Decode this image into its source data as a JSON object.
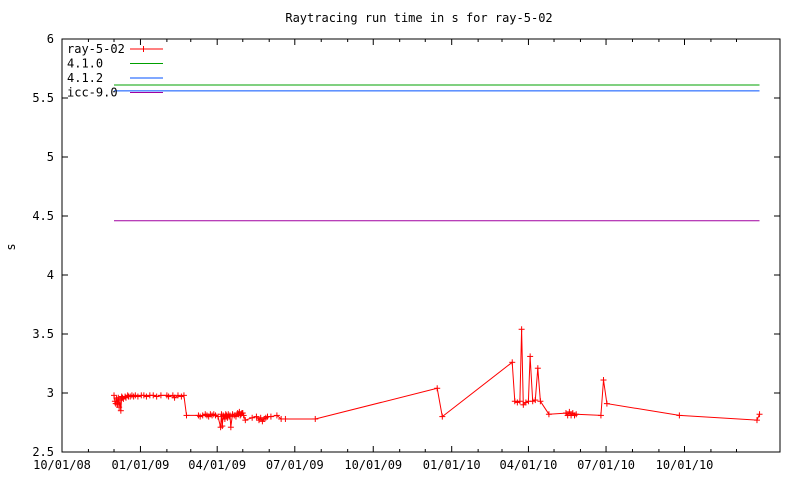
{
  "chart_data": {
    "type": "line",
    "title": "Raytracing run time in s for ray-5-02",
    "xlabel": "",
    "ylabel": "s",
    "xlim": [
      "2008-10-01",
      "2011-01-21"
    ],
    "ylim": [
      2.5,
      6
    ],
    "grid": false,
    "legend_position": "top-left",
    "x_ticks": [
      "10/01/08",
      "01/01/09",
      "04/01/09",
      "07/01/09",
      "10/01/09",
      "01/01/10",
      "04/01/10",
      "07/01/10",
      "10/01/10"
    ],
    "y_ticks": [
      "2.5",
      "3",
      "3.5",
      "4",
      "4.5",
      "5",
      "5.5",
      "6"
    ],
    "series": [
      {
        "name": "ray-5-02",
        "color": "#ff0000",
        "style": "linespoints",
        "marker": "plus",
        "points": [
          [
            "2008-12-01",
            2.98
          ],
          [
            "2008-12-02",
            2.93
          ],
          [
            "2008-12-03",
            2.91
          ],
          [
            "2008-12-04",
            2.95
          ],
          [
            "2008-12-05",
            2.9
          ],
          [
            "2008-12-06",
            2.96
          ],
          [
            "2008-12-07",
            2.88
          ],
          [
            "2008-12-08",
            2.94
          ],
          [
            "2008-12-09",
            2.85
          ],
          [
            "2008-12-10",
            2.97
          ],
          [
            "2008-12-11",
            2.96
          ],
          [
            "2008-12-12",
            2.95
          ],
          [
            "2008-12-14",
            2.97
          ],
          [
            "2008-12-15",
            2.96
          ],
          [
            "2008-12-17",
            2.98
          ],
          [
            "2008-12-18",
            2.97
          ],
          [
            "2008-12-20",
            2.97
          ],
          [
            "2008-12-22",
            2.98
          ],
          [
            "2008-12-24",
            2.97
          ],
          [
            "2008-12-26",
            2.98
          ],
          [
            "2008-12-29",
            2.97
          ],
          [
            "2009-01-02",
            2.98
          ],
          [
            "2009-01-05",
            2.98
          ],
          [
            "2009-01-08",
            2.97
          ],
          [
            "2009-01-12",
            2.98
          ],
          [
            "2009-01-16",
            2.98
          ],
          [
            "2009-01-20",
            2.97
          ],
          [
            "2009-01-25",
            2.98
          ],
          [
            "2009-02-01",
            2.98
          ],
          [
            "2009-02-03",
            2.97
          ],
          [
            "2009-02-08",
            2.98
          ],
          [
            "2009-02-10",
            2.96
          ],
          [
            "2009-02-14",
            2.98
          ],
          [
            "2009-02-18",
            2.97
          ],
          [
            "2009-02-21",
            2.98
          ],
          [
            "2009-02-24",
            2.81
          ],
          [
            "2009-03-10",
            2.81
          ],
          [
            "2009-03-12",
            2.8
          ],
          [
            "2009-03-15",
            2.81
          ],
          [
            "2009-03-18",
            2.82
          ],
          [
            "2009-03-20",
            2.81
          ],
          [
            "2009-03-22",
            2.8
          ],
          [
            "2009-03-24",
            2.82
          ],
          [
            "2009-03-26",
            2.81
          ],
          [
            "2009-03-28",
            2.82
          ],
          [
            "2009-03-30",
            2.81
          ],
          [
            "2009-04-02",
            2.8
          ],
          [
            "2009-04-05",
            2.71
          ],
          [
            "2009-04-06",
            2.82
          ],
          [
            "2009-04-07",
            2.72
          ],
          [
            "2009-04-08",
            2.81
          ],
          [
            "2009-04-09",
            2.8
          ],
          [
            "2009-04-10",
            2.78
          ],
          [
            "2009-04-11",
            2.82
          ],
          [
            "2009-04-12",
            2.81
          ],
          [
            "2009-04-13",
            2.79
          ],
          [
            "2009-04-14",
            2.82
          ],
          [
            "2009-04-15",
            2.8
          ],
          [
            "2009-04-16",
            2.81
          ],
          [
            "2009-04-17",
            2.71
          ],
          [
            "2009-04-19",
            2.82
          ],
          [
            "2009-04-21",
            2.81
          ],
          [
            "2009-04-23",
            2.8
          ],
          [
            "2009-04-25",
            2.83
          ],
          [
            "2009-04-26",
            2.82
          ],
          [
            "2009-04-27",
            2.84
          ],
          [
            "2009-04-28",
            2.81
          ],
          [
            "2009-04-29",
            2.82
          ],
          [
            "2009-04-30",
            2.83
          ],
          [
            "2009-05-01",
            2.83
          ],
          [
            "2009-05-02",
            2.81
          ],
          [
            "2009-05-04",
            2.77
          ],
          [
            "2009-05-12",
            2.79
          ],
          [
            "2009-05-17",
            2.8
          ],
          [
            "2009-05-20",
            2.77
          ],
          [
            "2009-05-22",
            2.79
          ],
          [
            "2009-05-24",
            2.76
          ],
          [
            "2009-05-26",
            2.78
          ],
          [
            "2009-05-28",
            2.79
          ],
          [
            "2009-05-30",
            2.8
          ],
          [
            "2009-06-03",
            2.8
          ],
          [
            "2009-06-10",
            2.81
          ],
          [
            "2009-06-15",
            2.78
          ],
          [
            "2009-06-20",
            2.78
          ],
          [
            "2009-07-25",
            2.78
          ],
          [
            "2009-12-15",
            3.04
          ],
          [
            "2009-12-21",
            2.8
          ],
          [
            "2010-03-13",
            3.26
          ],
          [
            "2010-03-16",
            2.93
          ],
          [
            "2010-03-19",
            2.92
          ],
          [
            "2010-03-22",
            2.93
          ],
          [
            "2010-03-24",
            3.54
          ],
          [
            "2010-03-26",
            2.9
          ],
          [
            "2010-03-29",
            2.92
          ],
          [
            "2010-04-01",
            2.93
          ],
          [
            "2010-04-03",
            3.31
          ],
          [
            "2010-04-06",
            2.93
          ],
          [
            "2010-04-09",
            2.94
          ],
          [
            "2010-04-12",
            3.21
          ],
          [
            "2010-04-15",
            2.93
          ],
          [
            "2010-04-25",
            2.82
          ],
          [
            "2010-05-15",
            2.83
          ],
          [
            "2010-05-17",
            2.81
          ],
          [
            "2010-05-19",
            2.84
          ],
          [
            "2010-05-21",
            2.81
          ],
          [
            "2010-05-23",
            2.83
          ],
          [
            "2010-05-25",
            2.81
          ],
          [
            "2010-05-27",
            2.82
          ],
          [
            "2010-06-25",
            2.81
          ],
          [
            "2010-06-28",
            3.11
          ],
          [
            "2010-07-02",
            2.91
          ],
          [
            "2010-09-25",
            2.81
          ],
          [
            "2010-12-25",
            2.77
          ],
          [
            "2010-12-28",
            2.82
          ]
        ]
      },
      {
        "name": "4.1.0",
        "color": "#00a000",
        "style": "lines",
        "points": [
          [
            "2008-12-01",
            5.61
          ],
          [
            "2010-12-28",
            5.61
          ]
        ]
      },
      {
        "name": "4.1.2",
        "color": "#0050ff",
        "style": "lines",
        "points": [
          [
            "2008-12-01",
            5.56
          ],
          [
            "2010-12-28",
            5.56
          ]
        ]
      },
      {
        "name": "icc-9.0",
        "color": "#a000a0",
        "style": "lines",
        "points": [
          [
            "2008-12-01",
            4.46
          ],
          [
            "2010-12-28",
            4.46
          ]
        ]
      }
    ]
  }
}
